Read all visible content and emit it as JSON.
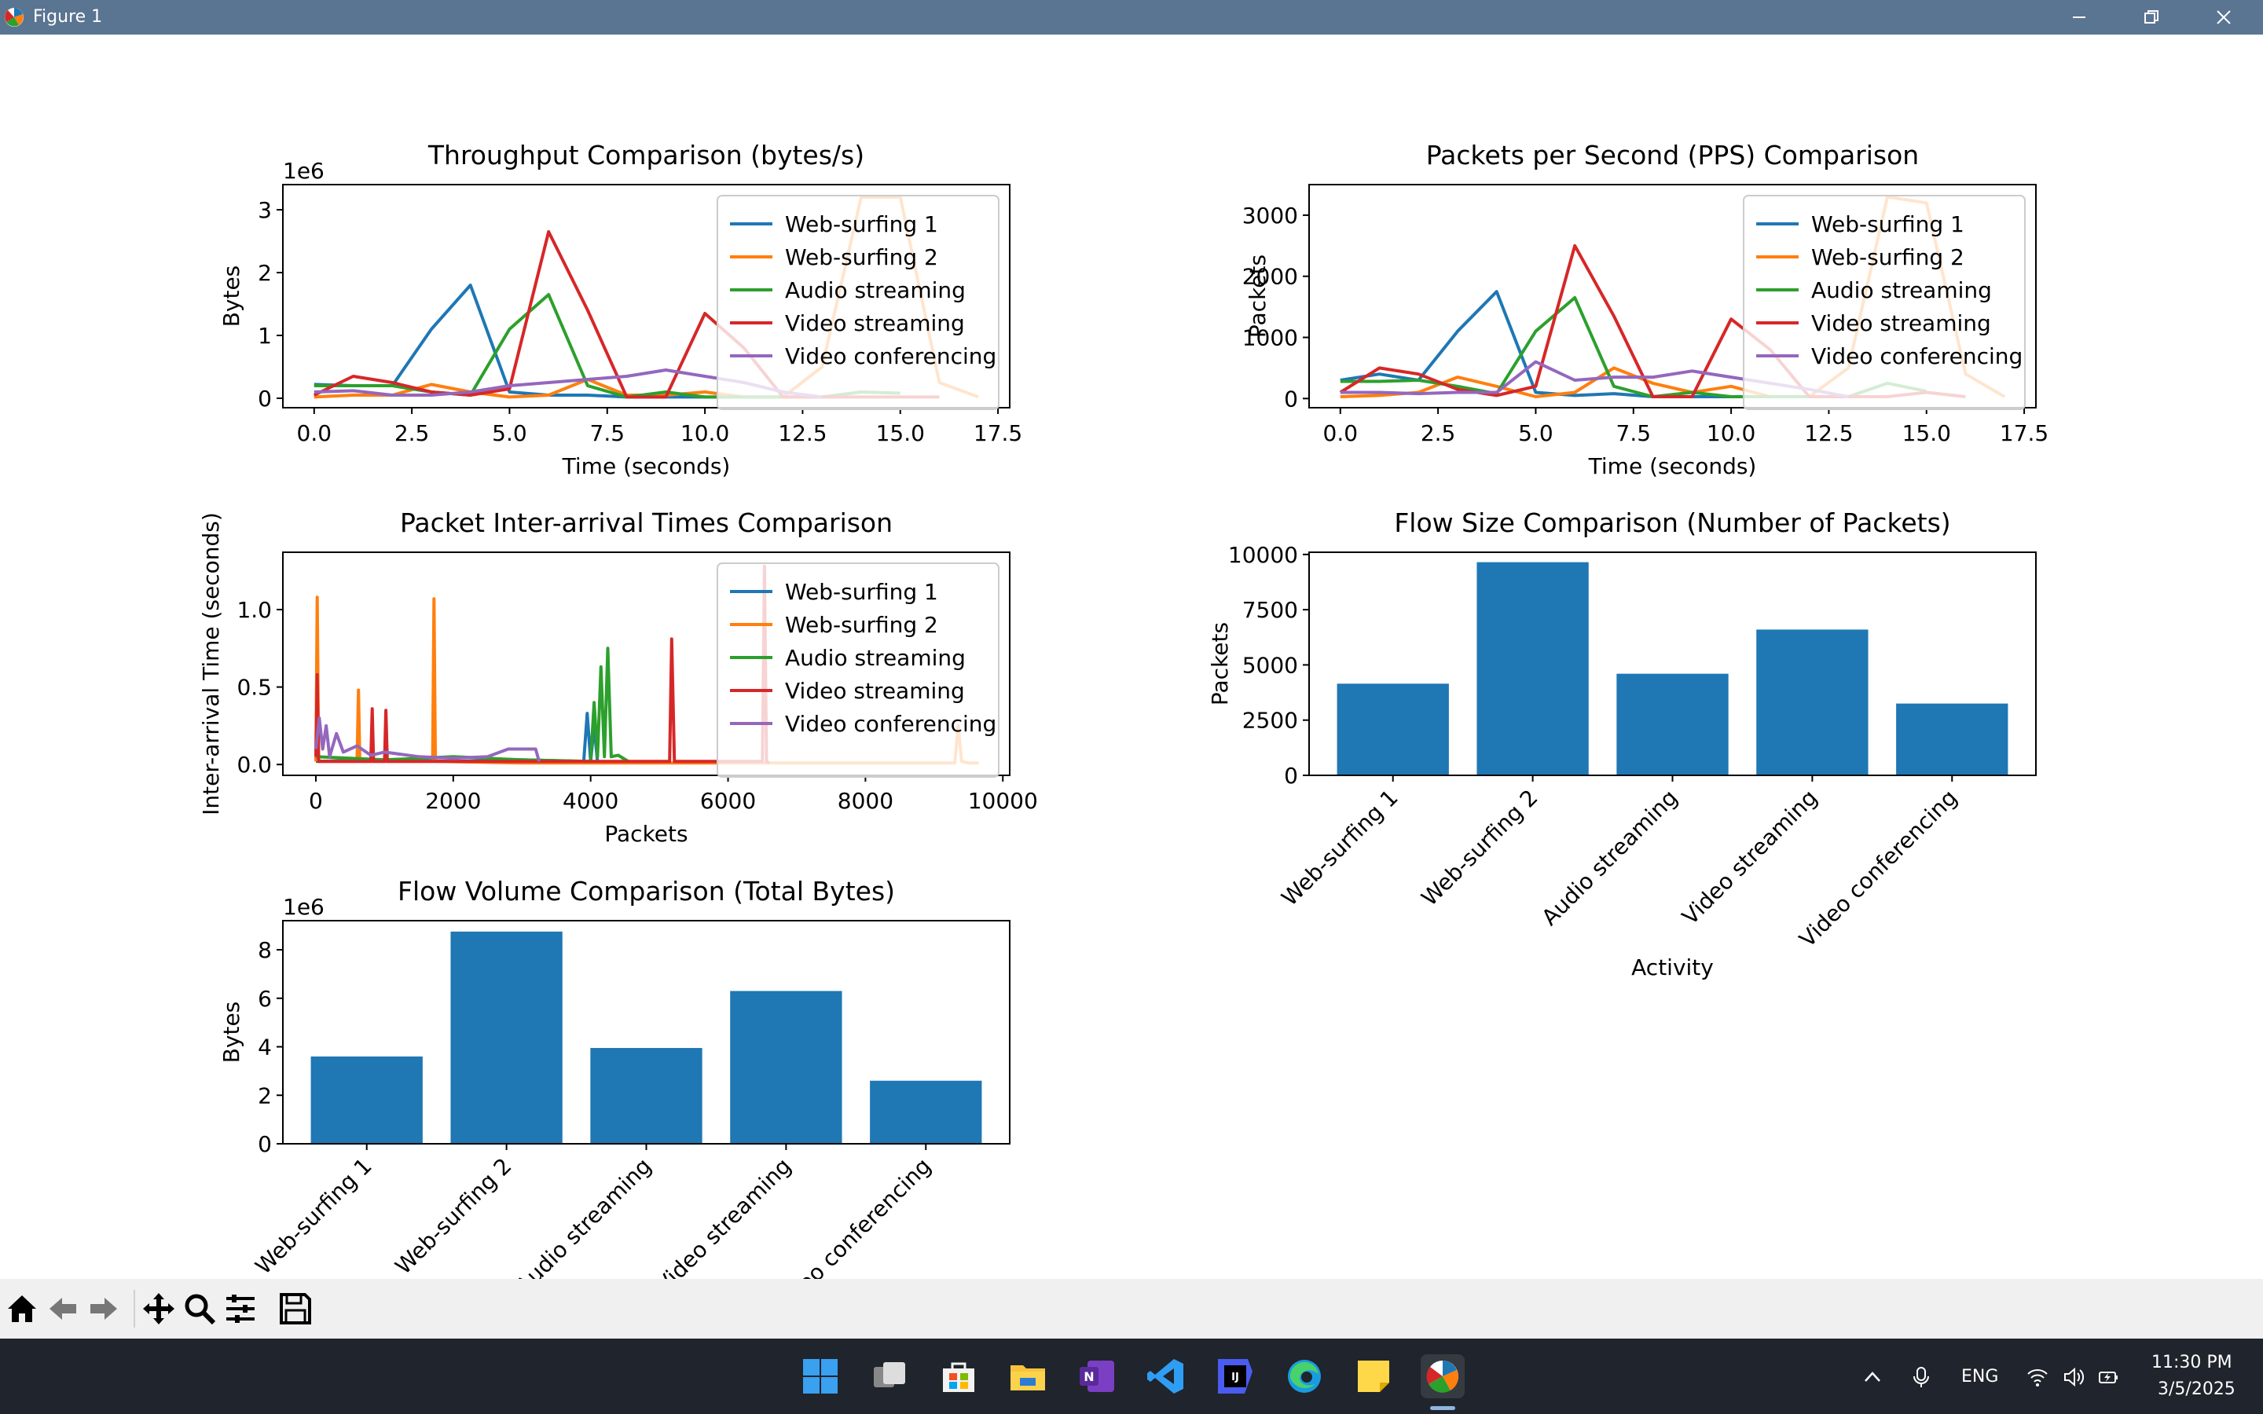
{
  "window": {
    "title": "Figure 1"
  },
  "toolbar": {
    "icons": [
      "home-icon",
      "back-arrow-icon",
      "forward-arrow-icon",
      "pan-icon",
      "zoom-icon",
      "configure-subplots-icon",
      "save-icon"
    ]
  },
  "taskbar": {
    "apps": [
      "start-icon",
      "task-view-icon",
      "store-icon",
      "file-explorer-icon",
      "onenote-icon",
      "vscode-icon",
      "intellij-icon",
      "edge-icon",
      "sticky-notes-icon",
      "python-figure-icon"
    ],
    "lang": "ENG",
    "time": "11:30 PM",
    "date": "3/5/2025"
  },
  "colors": {
    "s1": "#1f77b4",
    "s2": "#ff7f0e",
    "s3": "#2ca02c",
    "s4": "#d62728",
    "s5": "#9467bd",
    "bar": "#1f77b4"
  },
  "chart_data": [
    {
      "type": "line",
      "title": "Throughput Comparison (bytes/s)",
      "xlabel": "Time (seconds)",
      "ylabel": "Bytes",
      "offset_label": "1e6",
      "xlim": [
        -0.8,
        17.8
      ],
      "ylim": [
        -0.15,
        3.4
      ],
      "xticks": [
        0,
        2.5,
        5,
        7.5,
        10,
        12.5,
        15,
        17.5
      ],
      "xtick_labels": [
        "0.0",
        "2.5",
        "5.0",
        "7.5",
        "10.0",
        "12.5",
        "15.0",
        "17.5"
      ],
      "yticks": [
        0,
        1,
        2,
        3
      ],
      "ytick_labels": [
        "0",
        "1",
        "2",
        "3"
      ],
      "legend": "upper right",
      "series": [
        {
          "name": "Web-surfing 1",
          "color": "#1f77b4",
          "x": [
            0,
            1,
            2,
            3,
            4,
            5,
            6,
            7,
            8,
            9,
            10,
            11,
            12,
            13
          ],
          "y": [
            0.22,
            0.2,
            0.2,
            1.1,
            1.8,
            0.1,
            0.05,
            0.05,
            0.02,
            0.02,
            0.02,
            0.02,
            0.02,
            0.02
          ]
        },
        {
          "name": "Web-surfing 2",
          "color": "#ff7f0e",
          "x": [
            0,
            1,
            2,
            3,
            4,
            5,
            6,
            7,
            8,
            9,
            10,
            11,
            12,
            13,
            14,
            15,
            16,
            17
          ],
          "y": [
            0.02,
            0.05,
            0.05,
            0.22,
            0.1,
            0.02,
            0.05,
            0.3,
            0.05,
            0.05,
            0.1,
            0.02,
            0.02,
            0.5,
            3.2,
            3.2,
            0.25,
            0.02
          ]
        },
        {
          "name": "Audio streaming",
          "color": "#2ca02c",
          "x": [
            0,
            1,
            2,
            3,
            4,
            5,
            6,
            7,
            8,
            9,
            10,
            11,
            12,
            13,
            14,
            15
          ],
          "y": [
            0.2,
            0.2,
            0.2,
            0.1,
            0.05,
            1.1,
            1.65,
            0.2,
            0.02,
            0.1,
            0.02,
            0.02,
            0.02,
            0.02,
            0.1,
            0.08
          ]
        },
        {
          "name": "Video streaming",
          "color": "#d62728",
          "x": [
            0,
            1,
            2,
            3,
            4,
            5,
            6,
            7,
            8,
            9,
            10,
            11,
            12,
            13,
            14,
            15,
            16
          ],
          "y": [
            0.05,
            0.35,
            0.25,
            0.1,
            0.05,
            0.15,
            2.65,
            1.4,
            0.02,
            0.02,
            1.35,
            0.8,
            0.02,
            0.02,
            0.02,
            0.02,
            0.02
          ]
        },
        {
          "name": "Video conferencing",
          "color": "#9467bd",
          "x": [
            0,
            1,
            2,
            3,
            4,
            5,
            6,
            7,
            8,
            9,
            10,
            11,
            12,
            13
          ],
          "y": [
            0.1,
            0.12,
            0.05,
            0.05,
            0.1,
            0.2,
            0.25,
            0.3,
            0.35,
            0.45,
            0.35,
            0.25,
            0.1,
            0.02
          ]
        }
      ]
    },
    {
      "type": "line",
      "title": "Packets per Second (PPS) Comparison",
      "xlabel": "Time (seconds)",
      "ylabel": "Packets",
      "xlim": [
        -0.8,
        17.8
      ],
      "ylim": [
        -150,
        3500
      ],
      "xticks": [
        0,
        2.5,
        5,
        7.5,
        10,
        12.5,
        15,
        17.5
      ],
      "xtick_labels": [
        "0.0",
        "2.5",
        "5.0",
        "7.5",
        "10.0",
        "12.5",
        "15.0",
        "17.5"
      ],
      "yticks": [
        0,
        1000,
        2000,
        3000
      ],
      "ytick_labels": [
        "0",
        "1000",
        "2000",
        "3000"
      ],
      "legend": "upper right",
      "series": [
        {
          "name": "Web-surfing 1",
          "color": "#1f77b4",
          "x": [
            0,
            1,
            2,
            3,
            4,
            5,
            6,
            7,
            8,
            9,
            10,
            11,
            12,
            13
          ],
          "y": [
            300,
            400,
            300,
            1100,
            1750,
            100,
            50,
            80,
            30,
            30,
            30,
            30,
            30,
            30
          ]
        },
        {
          "name": "Web-surfing 2",
          "color": "#ff7f0e",
          "x": [
            0,
            1,
            2,
            3,
            4,
            5,
            6,
            7,
            8,
            9,
            10,
            11,
            12,
            13,
            14,
            15,
            16,
            17
          ],
          "y": [
            30,
            50,
            100,
            350,
            200,
            30,
            100,
            500,
            250,
            100,
            200,
            30,
            30,
            500,
            3300,
            3200,
            400,
            30
          ]
        },
        {
          "name": "Audio streaming",
          "color": "#2ca02c",
          "x": [
            0,
            1,
            2,
            3,
            4,
            5,
            6,
            7,
            8,
            9,
            10,
            11,
            12,
            13,
            14,
            15
          ],
          "y": [
            280,
            280,
            300,
            200,
            80,
            1100,
            1650,
            200,
            30,
            100,
            30,
            30,
            30,
            30,
            250,
            120
          ]
        },
        {
          "name": "Video streaming",
          "color": "#d62728",
          "x": [
            0,
            1,
            2,
            3,
            4,
            5,
            6,
            7,
            8,
            9,
            10,
            11,
            12,
            13,
            14,
            15,
            16
          ],
          "y": [
            100,
            500,
            400,
            150,
            50,
            200,
            2500,
            1350,
            30,
            30,
            1300,
            800,
            30,
            30,
            30,
            100,
            30
          ]
        },
        {
          "name": "Video conferencing",
          "color": "#9467bd",
          "x": [
            0,
            1,
            2,
            3,
            4,
            5,
            6,
            7,
            8,
            9,
            10,
            11,
            12,
            13
          ],
          "y": [
            100,
            100,
            80,
            100,
            100,
            600,
            300,
            350,
            350,
            450,
            350,
            250,
            150,
            30
          ]
        }
      ]
    },
    {
      "type": "line",
      "title": "Packet Inter-arrival Times Comparison",
      "xlabel": "Packets",
      "ylabel": "Inter-arrival Time (seconds)",
      "xlim": [
        -480,
        10100
      ],
      "ylim": [
        -0.07,
        1.37
      ],
      "xticks": [
        0,
        2000,
        4000,
        6000,
        8000,
        10000
      ],
      "xtick_labels": [
        "0",
        "2000",
        "4000",
        "6000",
        "8000",
        "10000"
      ],
      "yticks": [
        0,
        0.5,
        1.0
      ],
      "ytick_labels": [
        "0.0",
        "0.5",
        "1.0"
      ],
      "legend": "upper right",
      "series": [
        {
          "name": "Web-surfing 1",
          "color": "#1f77b4",
          "x": [
            0,
            1000,
            2000,
            3000,
            3900,
            3950,
            4000,
            4050,
            4100,
            4130
          ],
          "y": [
            0.02,
            0.03,
            0.02,
            0.03,
            0.02,
            0.33,
            0.02,
            0.25,
            0.02,
            0.01
          ]
        },
        {
          "name": "Web-surfing 2",
          "color": "#ff7f0e",
          "x": [
            0,
            20,
            40,
            60,
            600,
            620,
            640,
            1700,
            1720,
            1740,
            3000,
            5000,
            7000,
            9300,
            9350,
            9400,
            9500,
            9650
          ],
          "y": [
            0.02,
            1.08,
            0.02,
            0.02,
            0.02,
            0.48,
            0.02,
            0.02,
            1.07,
            0.02,
            0.01,
            0.01,
            0.01,
            0.01,
            0.25,
            0.02,
            0.01,
            0.01
          ]
        },
        {
          "name": "Audio streaming",
          "color": "#2ca02c",
          "x": [
            0,
            1000,
            2000,
            3000,
            4000,
            4050,
            4100,
            4150,
            4200,
            4250,
            4300,
            4400,
            4550
          ],
          "y": [
            0.05,
            0.03,
            0.05,
            0.03,
            0.02,
            0.4,
            0.05,
            0.63,
            0.05,
            0.75,
            0.05,
            0.06,
            0.02
          ]
        },
        {
          "name": "Video streaming",
          "color": "#d62728",
          "x": [
            0,
            20,
            40,
            800,
            820,
            840,
            1000,
            1020,
            1040,
            5150,
            5180,
            5220,
            6500,
            6530,
            6560,
            6600
          ],
          "y": [
            0.05,
            0.58,
            0.02,
            0.02,
            0.36,
            0.02,
            0.02,
            0.35,
            0.02,
            0.02,
            0.81,
            0.02,
            0.02,
            1.28,
            0.02,
            0.01
          ]
        },
        {
          "name": "Video conferencing",
          "color": "#9467bd",
          "x": [
            0,
            50,
            100,
            150,
            200,
            300,
            400,
            600,
            800,
            1000,
            1500,
            2000,
            2500,
            2800,
            3000,
            3200,
            3250
          ],
          "y": [
            0.1,
            0.3,
            0.1,
            0.25,
            0.05,
            0.2,
            0.08,
            0.12,
            0.06,
            0.08,
            0.05,
            0.04,
            0.05,
            0.1,
            0.1,
            0.1,
            0.02
          ]
        }
      ]
    },
    {
      "type": "bar",
      "title": "Flow Size Comparison (Number of Packets)",
      "xlabel": "Activity",
      "ylabel": "Packets",
      "categories": [
        "Web-surfing 1",
        "Web-surfing 2",
        "Audio streaming",
        "Video streaming",
        "Video conferencing"
      ],
      "values": [
        4150,
        9650,
        4600,
        6600,
        3250
      ],
      "ylim": [
        0,
        10100
      ],
      "yticks": [
        0,
        2500,
        5000,
        7500,
        10000
      ],
      "ytick_labels": [
        "0",
        "2500",
        "5000",
        "7500",
        "10000"
      ]
    },
    {
      "type": "bar",
      "title": "Flow Volume Comparison (Total Bytes)",
      "ylabel": "Bytes",
      "offset_label": "1e6",
      "categories": [
        "Web-surfing 1",
        "Web-surfing 2",
        "Audio streaming",
        "Video streaming",
        "Video conferencing"
      ],
      "values": [
        3.6,
        8.75,
        3.95,
        6.3,
        2.6
      ],
      "ylim": [
        0,
        9.2
      ],
      "yticks": [
        0,
        2,
        4,
        6,
        8
      ],
      "ytick_labels": [
        "0",
        "2",
        "4",
        "6",
        "8"
      ]
    }
  ]
}
